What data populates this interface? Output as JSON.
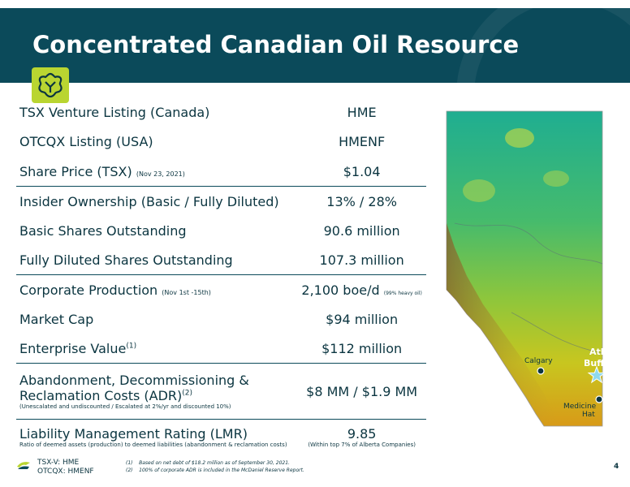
{
  "header": {
    "title": "Concentrated Canadian Oil Resource"
  },
  "rows": [
    {
      "label": "TSX Venture Listing (Canada)",
      "value": "HME"
    },
    {
      "label": "OTCQX Listing (USA)",
      "value": "HMENF"
    },
    {
      "label": "Share Price (TSX)",
      "label_note": "(Nov 23, 2021)",
      "value": "$1.04"
    },
    {
      "label": "Insider Ownership (Basic  /  Fully Diluted)",
      "value": "13%  /  28%"
    },
    {
      "label": "Basic Shares Outstanding",
      "value": "90.6 million"
    },
    {
      "label": "Fully Diluted Shares Outstanding",
      "value": "107.3 million"
    },
    {
      "label": "Corporate Production",
      "label_note": "(Nov 1st -15th)",
      "value": "2,100 boe/d",
      "value_note": "(99% heavy oil)"
    },
    {
      "label": "Market Cap",
      "value": "$94 million"
    },
    {
      "label": "Enterprise Value",
      "label_sup": "(1)",
      "value": "$112 million"
    },
    {
      "label": "Abandonment, Decommissioning &",
      "label_line2": "Reclamation Costs (ADR)",
      "label_sup": "(2)",
      "label_sub": "(Unescalated and undiscounted / Escalated at 2%/yr and discounted 10%)",
      "value": "$8 MM / $1.9 MM"
    },
    {
      "label": "Liability Management Rating (LMR)",
      "label_sub": "Ratio of deemed assets (production) to deemed liabilities (abandonment & reclamation costs)",
      "value": "9.85",
      "value_sub": "(Within top 7% of Alberta Companies)"
    }
  ],
  "map": {
    "cities": {
      "calgary": "Calgary",
      "atlee": "Atlee",
      "buffalo": "Buffalo",
      "medicine": "Medicine",
      "hat": "Hat"
    }
  },
  "footer": {
    "ticker1": "TSX-V: HME",
    "ticker2": "OTCQX: HMENF",
    "note1_num": "(1)",
    "note1": "Based on net debt of $18.2 million as of September 30, 2021.",
    "note2_num": "(2)",
    "note2": "100% of corporate ADR is included in the McDaniel Reserve Report.",
    "page": "4"
  },
  "colors": {
    "header": "#0b4a5a",
    "accent": "#b9d531",
    "text": "#0b3540"
  }
}
